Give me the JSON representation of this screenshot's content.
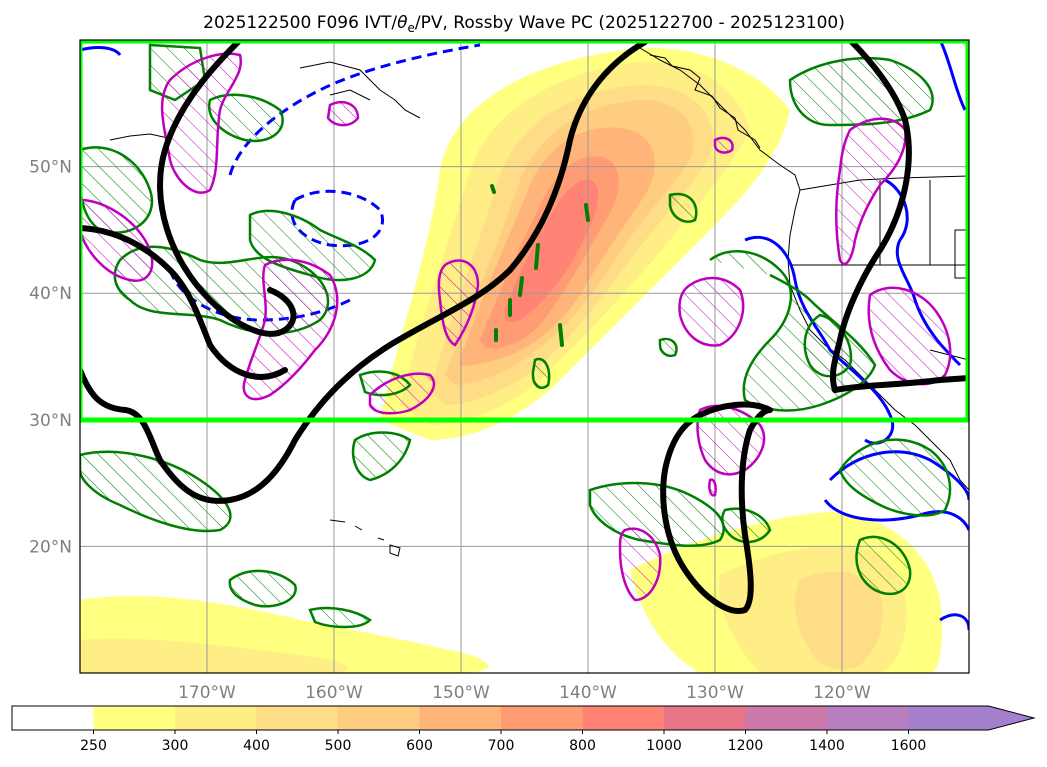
{
  "title_main": "2025122500 F096 IVT/",
  "title_theta": "θ",
  "title_sub": "e",
  "title_rest": "/PV, Rossby Wave PC (2025122700 - 2025123100)",
  "map": {
    "lon_ticks": [
      {
        "lon": -170,
        "label": "170°W"
      },
      {
        "lon": -160,
        "label": "160°W"
      },
      {
        "lon": -150,
        "label": "150°W"
      },
      {
        "lon": -140,
        "label": "140°W"
      },
      {
        "lon": -130,
        "label": "130°W"
      },
      {
        "lon": -120,
        "label": "120°W"
      }
    ],
    "lat_ticks": [
      {
        "lat": 50,
        "label": "50°N"
      },
      {
        "lat": 40,
        "label": "40°N"
      },
      {
        "lat": 30,
        "label": "30°N"
      },
      {
        "lat": 20,
        "label": "20°N"
      }
    ],
    "extent": {
      "lon_min": -180,
      "lon_max": -110,
      "lat_min": 10,
      "lat_max": 60
    },
    "highlight_box": {
      "lon_min": -180,
      "lon_max": -110,
      "lat_min": 30,
      "lat_max": 60,
      "color": "#00ff00"
    },
    "colors": {
      "trough_line": "#000000",
      "pv_positive": "#00007f",
      "pv_contour": "#0000ff",
      "theta_e": "#008000",
      "anomaly": "#bf00bf",
      "coast": "#000000"
    }
  },
  "colorbar": {
    "ticks": [
      "250",
      "300",
      "400",
      "500",
      "600",
      "700",
      "800",
      "1000",
      "1200",
      "1400",
      "1600"
    ],
    "colors": [
      "#ffffff",
      "#ffff80",
      "#ffed86",
      "#ffdc86",
      "#ffcd80",
      "#ffb47a",
      "#ff9c74",
      "#ff8476",
      "#e87689",
      "#cc7aaa",
      "#b87fc0",
      "#a47fcc"
    ]
  }
}
